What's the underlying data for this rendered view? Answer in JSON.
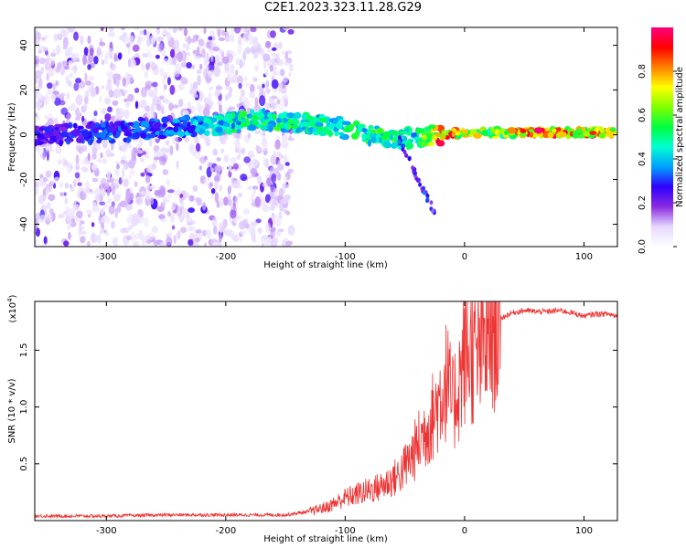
{
  "figure": {
    "title": "C2E1.2023.323.11.28.G29"
  },
  "chart_data": [
    {
      "type": "heatmap",
      "xlabel": "Height of straight line (km)",
      "ylabel": "Frequency (Hz)",
      "xlim": [
        -360,
        128
      ],
      "ylim": [
        -50,
        48
      ],
      "xticks": [
        -300,
        -200,
        -100,
        0,
        100
      ],
      "yticks": [
        -40,
        -20,
        0,
        20,
        40
      ],
      "colorbar": {
        "label": "Normalized spectral amplitude",
        "range": [
          0,
          1
        ],
        "ticks": [
          0.0,
          0.2,
          0.4,
          0.6,
          0.8
        ],
        "colormap": [
          "#ffffff",
          "#e6d8ff",
          "#8a2be2",
          "#3000ff",
          "#00a0ff",
          "#00ffd0",
          "#00ff40",
          "#80ff00",
          "#ffff00",
          "#ff8000",
          "#ff0000",
          "#ff0080"
        ]
      },
      "ridge": [
        {
          "x": -355,
          "freq": 0,
          "amp": 0.25
        },
        {
          "x": -300,
          "freq": 1,
          "amp": 0.3
        },
        {
          "x": -250,
          "freq": 3,
          "amp": 0.32
        },
        {
          "x": -200,
          "freq": 5,
          "amp": 0.45
        },
        {
          "x": -170,
          "freq": 7,
          "amp": 0.5
        },
        {
          "x": -140,
          "freq": 5,
          "amp": 0.5
        },
        {
          "x": -110,
          "freq": 4,
          "amp": 0.45
        },
        {
          "x": -80,
          "freq": 0,
          "amp": 0.5
        },
        {
          "x": -60,
          "freq": -2,
          "amp": 0.5
        },
        {
          "x": -40,
          "freq": -1,
          "amp": 0.45
        },
        {
          "x": -20,
          "freq": 0,
          "amp": 0.85
        },
        {
          "x": 0,
          "freq": 1,
          "amp": 0.7
        },
        {
          "x": 30,
          "freq": 1,
          "amp": 0.6
        },
        {
          "x": 60,
          "freq": 1,
          "amp": 0.9
        },
        {
          "x": 90,
          "freq": 1,
          "amp": 0.75
        },
        {
          "x": 128,
          "freq": 1,
          "amp": 0.8
        }
      ]
    },
    {
      "type": "line",
      "xlabel": "Height of straight line (km)",
      "ylabel": "SNR (10 * v/v)",
      "yscale_label": "(x10",
      "yscale_exp": "4",
      "yscale_close": ")",
      "xlim": [
        -360,
        128
      ],
      "ylim": [
        0,
        1.93
      ],
      "xticks": [
        -300,
        -200,
        -100,
        0,
        100
      ],
      "yticks": [
        0.5,
        1.0,
        1.5
      ],
      "ytick_labels": [
        "0.5",
        "1.0",
        "1.5"
      ],
      "series": [
        {
          "color": "#ee3333",
          "x": [
            -360,
            -300,
            -250,
            -200,
            -150,
            -130,
            -115,
            -100,
            -85,
            -70,
            -55,
            -45,
            -35,
            -25,
            -20,
            -15,
            -10,
            -5,
            0,
            5,
            10,
            15,
            20,
            25,
            30,
            40,
            50,
            60,
            70,
            80,
            90,
            100,
            110,
            120,
            128
          ],
          "y": [
            0.04,
            0.04,
            0.05,
            0.05,
            0.05,
            0.08,
            0.12,
            0.2,
            0.25,
            0.3,
            0.4,
            0.55,
            0.75,
            0.95,
            1.1,
            1.25,
            1.0,
            1.2,
            1.45,
            1.5,
            1.4,
            1.55,
            1.6,
            1.7,
            1.78,
            1.83,
            1.85,
            1.84,
            1.84,
            1.85,
            1.83,
            1.8,
            1.82,
            1.82,
            1.8
          ]
        }
      ]
    }
  ]
}
